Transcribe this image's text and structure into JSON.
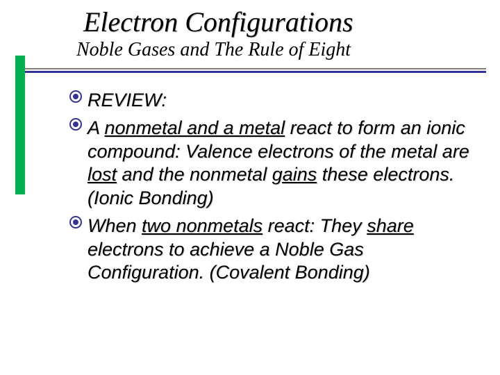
{
  "colors": {
    "accent_green": "#00b050",
    "rule_top": "#808080",
    "rule_bottom": "#333399",
    "bullet_color": "#333399",
    "text_color": "#000000",
    "shadow_color": "#cfcfcf",
    "background": "#ffffff"
  },
  "title": {
    "text": "Electron Configurations",
    "font_family": "Times New Roman",
    "font_size_pt": 40,
    "font_style": "italic"
  },
  "subtitle": {
    "text": "Noble Gases and The Rule of Eight",
    "font_family": "Times New Roman",
    "font_size_pt": 28,
    "font_style": "italic"
  },
  "body": {
    "font_size_pt": 27,
    "font_style": "italic",
    "items": [
      {
        "segments": [
          {
            "t": "REVIEW:",
            "u": false
          }
        ]
      },
      {
        "segments": [
          {
            "t": "A ",
            "u": false
          },
          {
            "t": "nonmetal and a metal",
            "u": true
          },
          {
            "t": " react to form an ionic compound: Valence electrons of the metal are ",
            "u": false
          },
          {
            "t": "lost",
            "u": true
          },
          {
            "t": " and the nonmetal ",
            "u": false
          },
          {
            "t": "gains",
            "u": true
          },
          {
            "t": " these electrons. (Ionic Bonding)",
            "u": false
          }
        ]
      },
      {
        "segments": [
          {
            "t": "When ",
            "u": false
          },
          {
            "t": "two nonmetals",
            "u": true
          },
          {
            "t": " react:  They ",
            "u": false
          },
          {
            "t": "share",
            "u": true
          },
          {
            "t": " electrons to achieve a Noble Gas Configuration. (Covalent Bonding)",
            "u": false
          }
        ]
      }
    ]
  }
}
